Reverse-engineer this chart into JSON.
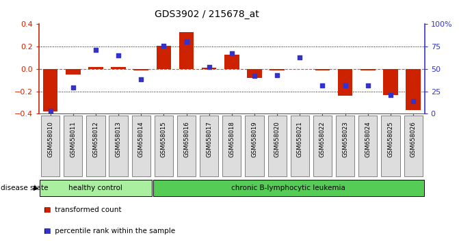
{
  "title": "GDS3902 / 215678_at",
  "samples": [
    "GSM658010",
    "GSM658011",
    "GSM658012",
    "GSM658013",
    "GSM658014",
    "GSM658015",
    "GSM658016",
    "GSM658017",
    "GSM658018",
    "GSM658019",
    "GSM658020",
    "GSM658021",
    "GSM658022",
    "GSM658023",
    "GSM658024",
    "GSM658025",
    "GSM658026"
  ],
  "bar_values": [
    -0.38,
    -0.05,
    0.02,
    0.02,
    -0.01,
    0.21,
    0.33,
    0.01,
    0.13,
    -0.08,
    -0.01,
    0.0,
    -0.01,
    -0.24,
    -0.01,
    -0.23,
    -0.37
  ],
  "dot_values": [
    -0.375,
    -0.165,
    0.17,
    0.12,
    -0.09,
    0.205,
    0.245,
    0.02,
    0.14,
    -0.06,
    -0.055,
    0.105,
    -0.145,
    -0.145,
    -0.145,
    -0.23,
    -0.285
  ],
  "bar_color": "#CC2200",
  "dot_color": "#3333CC",
  "ylim": [
    -0.4,
    0.4
  ],
  "y2lim": [
    0,
    100
  ],
  "yticks": [
    -0.4,
    -0.2,
    0.0,
    0.2,
    0.4
  ],
  "y2ticks": [
    0,
    25,
    50,
    75,
    100
  ],
  "y2ticklabels": [
    "0",
    "25",
    "50",
    "75",
    "100%"
  ],
  "hlines": [
    -0.2,
    0.0,
    0.2
  ],
  "disease_groups": [
    {
      "label": "healthy control",
      "start": 0,
      "end": 5,
      "color": "#AAEEA0"
    },
    {
      "label": "chronic B-lymphocytic leukemia",
      "start": 5,
      "end": 17,
      "color": "#55CC55"
    }
  ],
  "disease_state_label": "disease state",
  "legend_bar_label": "transformed count",
  "legend_dot_label": "percentile rank within the sample",
  "bar_width": 0.65,
  "tick_label_bg": "#DDDDDD",
  "border_color": "#555555"
}
